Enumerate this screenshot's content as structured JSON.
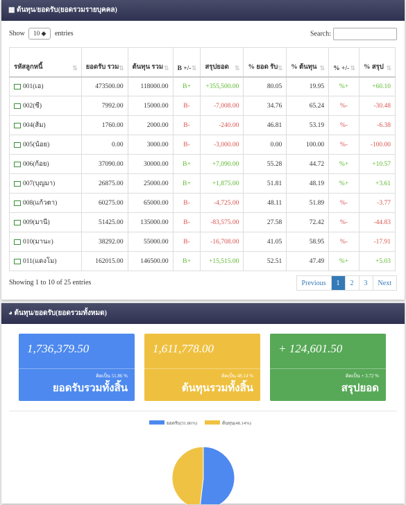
{
  "panel1": {
    "title": "ต้นทุน/ยอดรับ(ยอดรวมรายบุคคล)",
    "show_label": "Show",
    "page_length": "10",
    "entries_label": "entries",
    "search_label": "Search:",
    "table": {
      "headers": [
        "รหัสลูกหนี้",
        "ยอดรับ รวม",
        "ต้นทุน รวม",
        "B +/-",
        "สรุปยอด",
        "% ยอด รับ",
        "% ต้นทุน",
        "% +/-",
        "% สรุป"
      ],
      "rows": [
        [
          "001(เอ)",
          "473500.00",
          "118000.00",
          "B+",
          "+355,500.00",
          "80.05",
          "19.95",
          "%+",
          "+60.10"
        ],
        [
          "002(ซี)",
          "7992.00",
          "15000.00",
          "B-",
          "-7,008.00",
          "34.76",
          "65.24",
          "%-",
          "-30.48"
        ],
        [
          "004(ส้ม)",
          "1760.00",
          "2000.00",
          "B-",
          "-240.00",
          "46.81",
          "53.19",
          "%-",
          "-6.38"
        ],
        [
          "005(น้อย)",
          "0.00",
          "3000.00",
          "B-",
          "-3,000.00",
          "0.00",
          "100.00",
          "%-",
          "-100.00"
        ],
        [
          "006(ก้อย)",
          "37090.00",
          "30000.00",
          "B+",
          "+7,090.00",
          "55.28",
          "44.72",
          "%+",
          "+10.57"
        ],
        [
          "007(บุญมา)",
          "26875.00",
          "25000.00",
          "B+",
          "+1,875.00",
          "51.81",
          "48.19",
          "%+",
          "+3.61"
        ],
        [
          "008(แก้วตา)",
          "60275.00",
          "65000.00",
          "B-",
          "-4,725.00",
          "48.11",
          "51.89",
          "%-",
          "-3.77"
        ],
        [
          "009(มานี)",
          "51425.00",
          "135000.00",
          "B-",
          "-83,575.00",
          "27.58",
          "72.42",
          "%-",
          "-44.83"
        ],
        [
          "010(มานะ)",
          "38292.00",
          "55000.00",
          "B-",
          "-16,708.00",
          "41.05",
          "58.95",
          "%-",
          "-17.91"
        ],
        [
          "011(แดงโม)",
          "162015.00",
          "146500.00",
          "B+",
          "+15,515.00",
          "52.51",
          "47.49",
          "%+",
          "+5.03"
        ]
      ]
    },
    "info": "Showing 1 to 10 of 25 entries",
    "pagination": [
      "Previous",
      "1",
      "2",
      "3",
      "Next"
    ]
  },
  "panel2": {
    "title": "ต้นทุน/ยอดรับ(ยอดรวมทั้งหมด)",
    "cards": [
      {
        "amount": "1,736,379.50",
        "percent": "คิดเป็น 51.86 %",
        "label": "ยอดรับรวมทั้งสิ้น"
      },
      {
        "amount": "1,611,778.00",
        "percent": "คิดเป็น 48.14 %",
        "label": "ต้นทุนรวมทั้งสิ้น"
      },
      {
        "amount": "+ 124,601.50",
        "percent": "คิดเป็น + 3.72 %",
        "label": "สรุปยอด"
      }
    ],
    "pie": {
      "type": "pie",
      "legend": [
        "ยอดรับ(51.86%)",
        "ต้นทุน(48.14%)"
      ],
      "values": [
        51.86,
        48.14
      ],
      "colors": [
        "#4d89ef",
        "#f0c244"
      ]
    }
  }
}
